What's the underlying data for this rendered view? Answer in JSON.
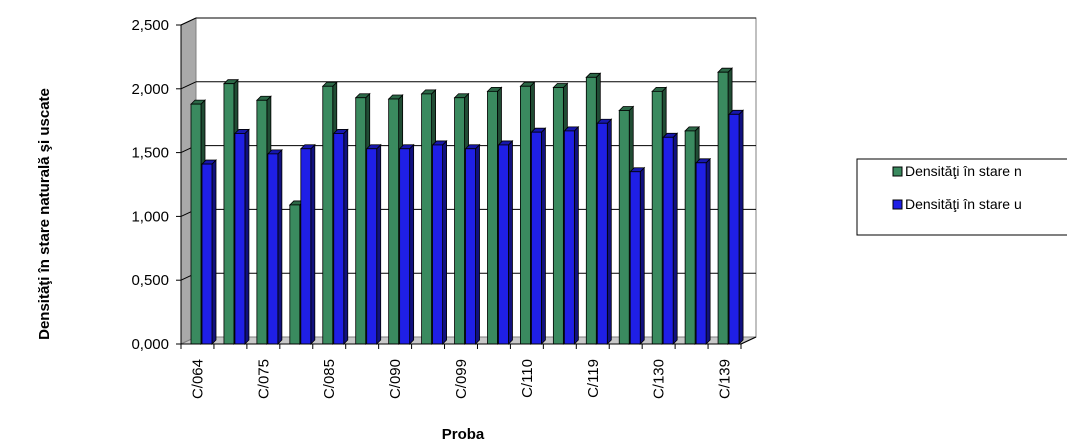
{
  "chart_data": {
    "type": "bar",
    "categories": [
      "C/064",
      "",
      "C/075",
      "",
      "C/085",
      "",
      "C/090",
      "",
      "C/099",
      "",
      "C/110",
      "",
      "C/119",
      "",
      "C/130",
      "",
      "C/139"
    ],
    "series": [
      {
        "name": "Densităţi în stare n",
        "color": "#3a8a5f",
        "values": [
          1.88,
          2.04,
          1.91,
          1.09,
          2.02,
          1.93,
          1.92,
          1.96,
          1.93,
          1.98,
          2.02,
          2.01,
          2.09,
          1.83,
          1.98,
          1.67,
          2.13
        ]
      },
      {
        "name": "Densităţi în stare u",
        "color": "#1f1fe6",
        "values": [
          1.41,
          1.65,
          1.49,
          1.53,
          1.65,
          1.53,
          1.53,
          1.56,
          1.53,
          1.56,
          1.66,
          1.67,
          1.73,
          1.35,
          1.62,
          1.42,
          1.8
        ]
      }
    ],
    "yticks": [
      "0,000",
      "0,500",
      "1,000",
      "1,500",
      "2,000",
      "2,500"
    ],
    "ylim": [
      0,
      2.5
    ],
    "xlabel": "Proba",
    "ylabel": "Densităţi în stare naturală şi uscate",
    "grid": true,
    "legend_position": "right"
  }
}
